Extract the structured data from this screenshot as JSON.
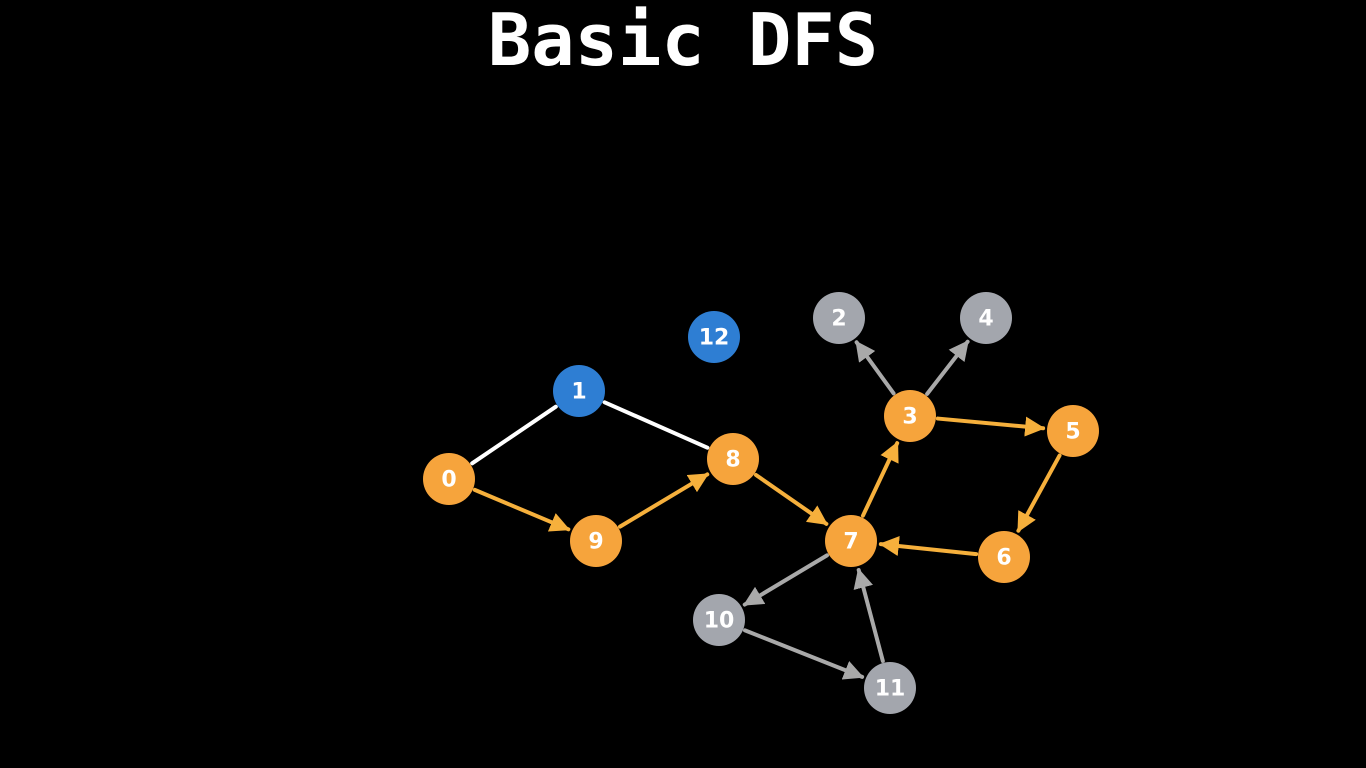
{
  "title": "Basic DFS",
  "colors": {
    "background": "#000000",
    "visited": "#f6a43c",
    "current": "#2e7ed3",
    "unvisited": "#a3a6ad",
    "edge_plain": "#ffffff",
    "edge_traversed": "#f6b03c",
    "edge_pending": "#a9a9a9"
  },
  "nodes": [
    {
      "id": "0",
      "label": "0",
      "state": "visited"
    },
    {
      "id": "1",
      "label": "1",
      "state": "current"
    },
    {
      "id": "2",
      "label": "2",
      "state": "unvisited"
    },
    {
      "id": "3",
      "label": "3",
      "state": "visited"
    },
    {
      "id": "4",
      "label": "4",
      "state": "unvisited"
    },
    {
      "id": "5",
      "label": "5",
      "state": "visited"
    },
    {
      "id": "6",
      "label": "6",
      "state": "visited"
    },
    {
      "id": "7",
      "label": "7",
      "state": "visited"
    },
    {
      "id": "8",
      "label": "8",
      "state": "visited"
    },
    {
      "id": "9",
      "label": "9",
      "state": "visited"
    },
    {
      "id": "10",
      "label": "10",
      "state": "unvisited"
    },
    {
      "id": "11",
      "label": "11",
      "state": "unvisited"
    },
    {
      "id": "12",
      "label": "12",
      "state": "current"
    }
  ],
  "edges": [
    {
      "from": "0",
      "to": "1",
      "style": "plain",
      "directed": false
    },
    {
      "from": "1",
      "to": "8",
      "style": "plain",
      "directed": false
    },
    {
      "from": "0",
      "to": "9",
      "style": "traversed",
      "directed": true
    },
    {
      "from": "9",
      "to": "8",
      "style": "traversed",
      "directed": true
    },
    {
      "from": "8",
      "to": "7",
      "style": "traversed",
      "directed": true
    },
    {
      "from": "7",
      "to": "3",
      "style": "traversed",
      "directed": true
    },
    {
      "from": "3",
      "to": "5",
      "style": "traversed",
      "directed": true
    },
    {
      "from": "5",
      "to": "6",
      "style": "traversed",
      "directed": true
    },
    {
      "from": "6",
      "to": "7",
      "style": "traversed",
      "directed": true
    },
    {
      "from": "3",
      "to": "2",
      "style": "pending",
      "directed": true
    },
    {
      "from": "3",
      "to": "4",
      "style": "pending",
      "directed": true
    },
    {
      "from": "7",
      "to": "10",
      "style": "pending",
      "directed": true
    },
    {
      "from": "10",
      "to": "11",
      "style": "pending",
      "directed": true
    },
    {
      "from": "11",
      "to": "7",
      "style": "pending",
      "directed": true
    }
  ]
}
